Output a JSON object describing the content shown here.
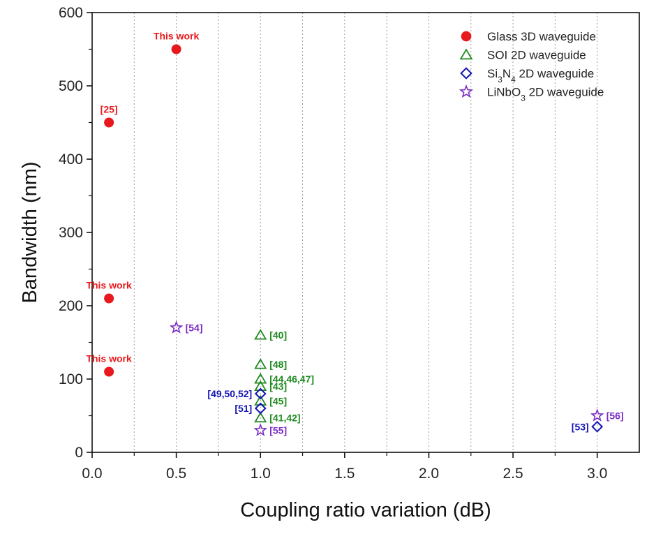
{
  "chart_data": {
    "type": "scatter",
    "title": "",
    "xlabel": "Coupling ratio variation (dB)",
    "ylabel": "Bandwidth (nm)",
    "xlim": [
      0,
      3.25
    ],
    "ylim": [
      0,
      600
    ],
    "xticks": [
      "0.0",
      "0.5",
      "1.0",
      "1.5",
      "2.0",
      "2.5",
      "3.0"
    ],
    "xtick_values": [
      0,
      0.5,
      1,
      1.5,
      2,
      2.5,
      3
    ],
    "yticks": [
      "0",
      "100",
      "200",
      "300",
      "400",
      "500",
      "600"
    ],
    "ytick_values": [
      0,
      100,
      200,
      300,
      400,
      500,
      600
    ],
    "vertical_dotted_gridlines": [
      0.25,
      0.5,
      0.75,
      1,
      1.25,
      1.5,
      1.75,
      2,
      2.25,
      2.5,
      2.75,
      3
    ],
    "legend_position": "top-right",
    "series": [
      {
        "name": "Glass 3D waveguide",
        "legend_label": {
          "main": "Glass 3D waveguide",
          "parts": [
            {
              "t": "Glass 3D waveguide",
              "s": ""
            }
          ]
        },
        "marker": "circle-filled",
        "color": "#e8191c",
        "points": [
          {
            "x": 0.5,
            "y": 550,
            "label": "This work",
            "label_pos": "above"
          },
          {
            "x": 0.1,
            "y": 450,
            "label": "[25]",
            "label_pos": "above"
          },
          {
            "x": 0.1,
            "y": 210,
            "label": "This work",
            "label_pos": "above"
          },
          {
            "x": 0.1,
            "y": 110,
            "label": "This work",
            "label_pos": "above"
          }
        ]
      },
      {
        "name": "SOI 2D waveguide",
        "legend_label": {
          "main": "SOI 2D waveguide",
          "parts": [
            {
              "t": "SOI 2D waveguide",
              "s": ""
            }
          ]
        },
        "marker": "triangle-open",
        "color": "#1e8a1e",
        "points": [
          {
            "x": 1.0,
            "y": 160,
            "label": "[40]",
            "label_pos": "right"
          },
          {
            "x": 1.0,
            "y": 120,
            "label": "[48]",
            "label_pos": "right"
          },
          {
            "x": 1.0,
            "y": 100,
            "label": "[44,46,47]",
            "label_pos": "right"
          },
          {
            "x": 1.0,
            "y": 90,
            "label": "[43]",
            "label_pos": "right"
          },
          {
            "x": 1.0,
            "y": 70,
            "label": "[45]",
            "label_pos": "right"
          },
          {
            "x": 1.0,
            "y": 47,
            "label": "[41,42]",
            "label_pos": "right"
          }
        ]
      },
      {
        "name": "Si3N4 2D waveguide",
        "legend_label": {
          "main": "Si₃N₄ 2D waveguide",
          "parts": [
            {
              "t": "Si",
              "s": ""
            },
            {
              "t": "3",
              "s": "sub"
            },
            {
              "t": "N",
              "s": ""
            },
            {
              "t": "4",
              "s": "sub"
            },
            {
              "t": " 2D waveguide",
              "s": ""
            }
          ]
        },
        "marker": "diamond-open",
        "color": "#1414b4",
        "points": [
          {
            "x": 1.0,
            "y": 80,
            "label": "[49,50,52]",
            "label_pos": "left"
          },
          {
            "x": 1.0,
            "y": 60,
            "label": "[51]",
            "label_pos": "left"
          },
          {
            "x": 3.0,
            "y": 35,
            "label": "[53]",
            "label_pos": "left"
          }
        ]
      },
      {
        "name": "LiNbO3 2D waveguide",
        "legend_label": {
          "main": "LiNbO₃ 2D waveguide",
          "parts": [
            {
              "t": "LiNbO",
              "s": ""
            },
            {
              "t": "3",
              "s": "sub"
            },
            {
              "t": " 2D waveguide",
              "s": ""
            }
          ]
        },
        "marker": "star-open",
        "color": "#7a2bc4",
        "points": [
          {
            "x": 0.5,
            "y": 170,
            "label": "[54]",
            "label_pos": "right"
          },
          {
            "x": 1.0,
            "y": 30,
            "label": "[55]",
            "label_pos": "right"
          },
          {
            "x": 3.0,
            "y": 50,
            "label": "[56]",
            "label_pos": "right"
          }
        ]
      }
    ]
  }
}
